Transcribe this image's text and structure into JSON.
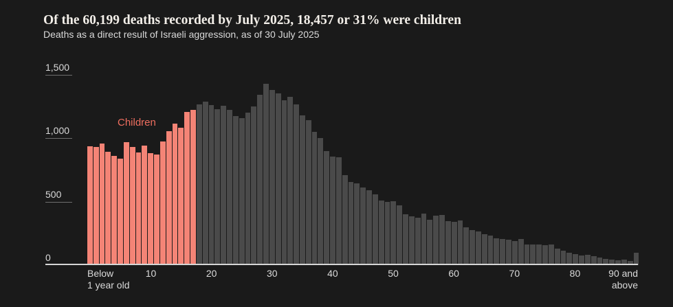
{
  "header": {
    "title": "Of the 60,199 deaths recorded by July 2025, 18,457 or 31% were children",
    "subtitle": "Deaths as a direct result of Israeli aggression, as of 30 July 2025"
  },
  "chart_data": {
    "type": "bar",
    "title": "Of the 60,199 deaths recorded by July 2025, 18,457 or 31% were children",
    "subtitle": "Deaths as a direct result of Israeli aggression, as of 30 July 2025",
    "annotation_label": "Children",
    "total_deaths": "60,199",
    "children_deaths": "18,457",
    "children_share": "31%",
    "children_through_index": 17,
    "grid": "off",
    "legend": "none",
    "ylim": [
      0,
      1500
    ],
    "y_axis": {
      "ticks": [
        {
          "label": "0",
          "value": 0
        },
        {
          "label": "500",
          "value": 500
        },
        {
          "label": "1,000",
          "value": 1000
        },
        {
          "label": "1,500",
          "value": 1500
        }
      ]
    },
    "x_axis": {
      "first_label_lines": [
        "Below",
        "1 year old"
      ],
      "last_label_lines": [
        "90 and",
        "above"
      ],
      "decade_ticks": [
        {
          "label": "10",
          "age": 10
        },
        {
          "label": "20",
          "age": 20
        },
        {
          "label": "30",
          "age": 30
        },
        {
          "label": "40",
          "age": 40
        },
        {
          "label": "50",
          "age": 50
        },
        {
          "label": "60",
          "age": 60
        },
        {
          "label": "70",
          "age": 70
        },
        {
          "label": "80",
          "age": 80
        }
      ]
    },
    "colors": {
      "children_bar": "#f48476",
      "adult_bar": "#4a4a4a",
      "annotation_text": "#ef6e5f",
      "background": "#1a1a1a",
      "axis_text": "#dadada"
    },
    "series": [
      {
        "name": "Deaths by age (single year of age)",
        "x": [
          "0",
          "1",
          "2",
          "3",
          "4",
          "5",
          "6",
          "7",
          "8",
          "9",
          "10",
          "11",
          "12",
          "13",
          "14",
          "15",
          "16",
          "17",
          "18",
          "19",
          "20",
          "21",
          "22",
          "23",
          "24",
          "25",
          "26",
          "27",
          "28",
          "29",
          "30",
          "31",
          "32",
          "33",
          "34",
          "35",
          "36",
          "37",
          "38",
          "39",
          "40",
          "41",
          "42",
          "43",
          "44",
          "45",
          "46",
          "47",
          "48",
          "49",
          "50",
          "51",
          "52",
          "53",
          "54",
          "55",
          "56",
          "57",
          "58",
          "59",
          "60",
          "61",
          "62",
          "63",
          "64",
          "65",
          "66",
          "67",
          "68",
          "69",
          "70",
          "71",
          "72",
          "73",
          "74",
          "75",
          "76",
          "77",
          "78",
          "79",
          "80",
          "81",
          "82",
          "83",
          "84",
          "85",
          "86",
          "87",
          "88",
          "89",
          "90+"
        ],
        "values": [
          935,
          930,
          960,
          895,
          860,
          840,
          970,
          930,
          890,
          945,
          885,
          870,
          975,
          1055,
          1115,
          1085,
          1210,
          1225,
          1265,
          1290,
          1260,
          1230,
          1255,
          1225,
          1175,
          1160,
          1200,
          1250,
          1345,
          1430,
          1380,
          1355,
          1300,
          1325,
          1265,
          1180,
          1140,
          1050,
          1000,
          900,
          855,
          850,
          710,
          655,
          645,
          610,
          590,
          560,
          510,
          500,
          505,
          470,
          400,
          385,
          375,
          405,
          355,
          390,
          398,
          345,
          340,
          350,
          297,
          278,
          265,
          245,
          235,
          210,
          205,
          200,
          190,
          205,
          160,
          165,
          160,
          155,
          160,
          130,
          115,
          100,
          85,
          75,
          80,
          70,
          60,
          50,
          45,
          40,
          42,
          35,
          95
        ]
      }
    ]
  }
}
